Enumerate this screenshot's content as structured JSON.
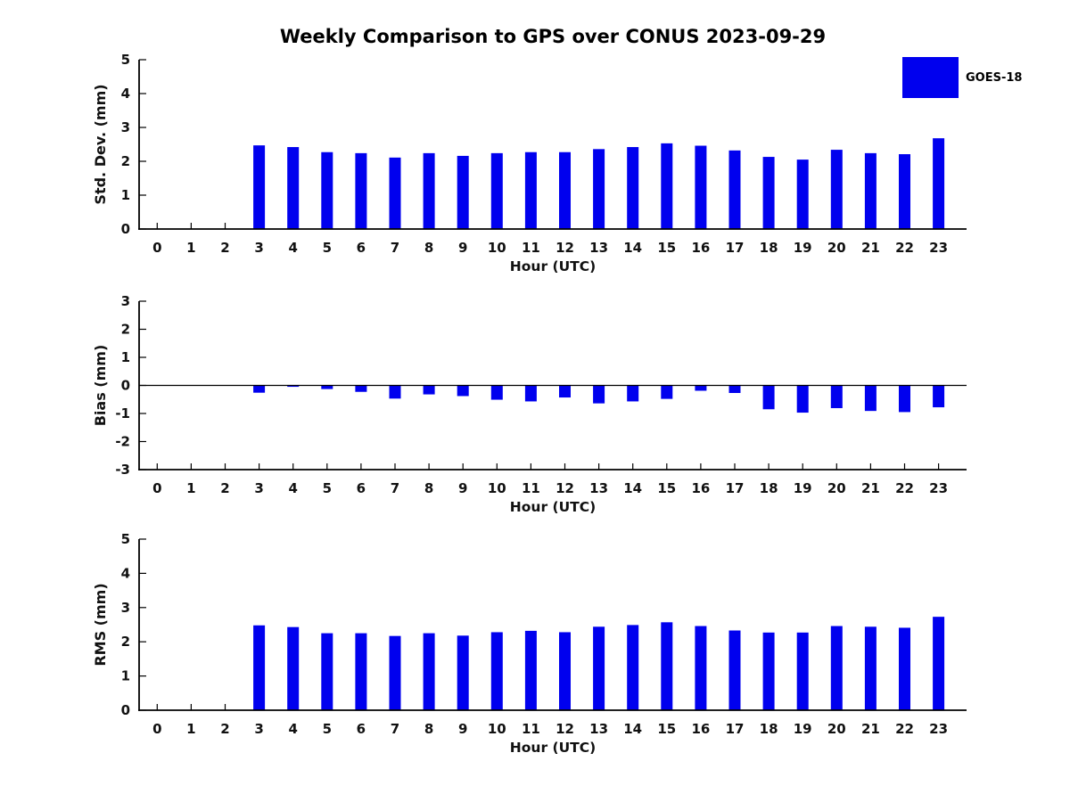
{
  "title": "Weekly Comparison to GPS over CONUS 2023-09-29",
  "legend": {
    "label": "GOES-18",
    "color": "#0000ee"
  },
  "colors": {
    "bar": "#0000ee",
    "axis": "#000000",
    "text": "#111111"
  },
  "x_axis_label": "Hour (UTC)",
  "chart_data": [
    {
      "type": "bar",
      "id": "std-dev",
      "ylabel": "Std. Dev. (mm)",
      "xlabel": "Hour (UTC)",
      "ylim": [
        0,
        5
      ],
      "yticks": [
        0,
        1,
        2,
        3,
        4,
        5
      ],
      "grid": false,
      "zero_line": false,
      "legend_position": "top-right",
      "categories": [
        "0",
        "1",
        "2",
        "3",
        "4",
        "5",
        "6",
        "7",
        "8",
        "9",
        "10",
        "11",
        "12",
        "13",
        "14",
        "15",
        "16",
        "17",
        "18",
        "19",
        "20",
        "21",
        "22",
        "23"
      ],
      "series": [
        {
          "name": "GOES-18",
          "values": [
            null,
            null,
            null,
            2.47,
            2.42,
            2.27,
            2.24,
            2.11,
            2.24,
            2.16,
            2.24,
            2.27,
            2.27,
            2.36,
            2.42,
            2.53,
            2.46,
            2.32,
            2.13,
            2.05,
            2.34,
            2.24,
            2.21,
            2.68
          ]
        }
      ]
    },
    {
      "type": "bar",
      "id": "bias",
      "ylabel": "Bias (mm)",
      "xlabel": "Hour (UTC)",
      "ylim": [
        -3,
        3
      ],
      "yticks": [
        3,
        2,
        1,
        0,
        -1,
        -2,
        -3
      ],
      "grid": false,
      "zero_line": true,
      "categories": [
        "0",
        "1",
        "2",
        "3",
        "4",
        "5",
        "6",
        "7",
        "8",
        "9",
        "10",
        "11",
        "12",
        "13",
        "14",
        "15",
        "16",
        "17",
        "18",
        "19",
        "20",
        "21",
        "22",
        "23"
      ],
      "series": [
        {
          "name": "GOES-18",
          "values": [
            null,
            null,
            null,
            -0.26,
            -0.05,
            -0.13,
            -0.23,
            -0.47,
            -0.32,
            -0.38,
            -0.51,
            -0.57,
            -0.43,
            -0.64,
            -0.57,
            -0.48,
            -0.19,
            -0.27,
            -0.85,
            -0.97,
            -0.81,
            -0.91,
            -0.95,
            -0.78
          ]
        }
      ]
    },
    {
      "type": "bar",
      "id": "rms",
      "ylabel": "RMS (mm)",
      "xlabel": "Hour (UTC)",
      "ylim": [
        0,
        5
      ],
      "yticks": [
        0,
        1,
        2,
        3,
        4,
        5
      ],
      "grid": false,
      "zero_line": false,
      "categories": [
        "0",
        "1",
        "2",
        "3",
        "4",
        "5",
        "6",
        "7",
        "8",
        "9",
        "10",
        "11",
        "12",
        "13",
        "14",
        "15",
        "16",
        "17",
        "18",
        "19",
        "20",
        "21",
        "22",
        "23"
      ],
      "series": [
        {
          "name": "GOES-18",
          "values": [
            null,
            null,
            null,
            2.48,
            2.43,
            2.25,
            2.25,
            2.17,
            2.25,
            2.18,
            2.28,
            2.32,
            2.28,
            2.44,
            2.49,
            2.57,
            2.46,
            2.33,
            2.27,
            2.27,
            2.46,
            2.44,
            2.41,
            2.73
          ]
        }
      ]
    }
  ]
}
